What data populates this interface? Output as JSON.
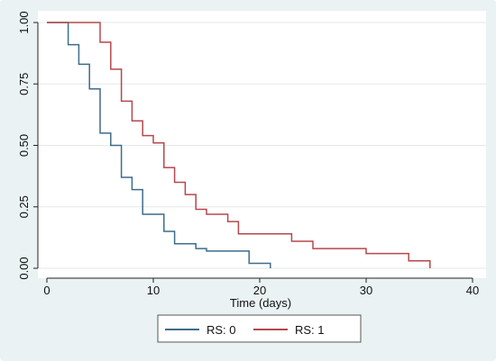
{
  "chart_data": {
    "type": "line",
    "title": "",
    "xlabel": "Time (days)",
    "ylabel": "",
    "xlim": [
      0,
      40
    ],
    "ylim": [
      0,
      1
    ],
    "xticks": [
      0,
      10,
      20,
      30,
      40
    ],
    "yticks": [
      0,
      0.25,
      0.5,
      0.75,
      1
    ],
    "xtick_labels": [
      "0",
      "10",
      "20",
      "30",
      "40"
    ],
    "ytick_labels": [
      "0.00",
      "0.25",
      "0.50",
      "0.75",
      "1.00"
    ],
    "grid": true,
    "step": true,
    "legend_position": "bottom",
    "series": [
      {
        "name": "RS: 0",
        "color": "#3d6d8c",
        "x": [
          0,
          2,
          3,
          4,
          5,
          6,
          7,
          8,
          9,
          11,
          12,
          14,
          15,
          19,
          21
        ],
        "y": [
          1.0,
          0.91,
          0.83,
          0.73,
          0.55,
          0.5,
          0.37,
          0.32,
          0.22,
          0.15,
          0.1,
          0.08,
          0.07,
          0.02,
          0.0
        ]
      },
      {
        "name": "RS: 1",
        "color": "#b5484d",
        "x": [
          0,
          5,
          6,
          7,
          8,
          9,
          10,
          11,
          12,
          13,
          14,
          15,
          17,
          18,
          23,
          25,
          30,
          34,
          36
        ],
        "y": [
          1.0,
          0.92,
          0.81,
          0.68,
          0.6,
          0.54,
          0.51,
          0.41,
          0.35,
          0.3,
          0.24,
          0.22,
          0.19,
          0.14,
          0.11,
          0.08,
          0.06,
          0.03,
          0.0
        ]
      }
    ]
  }
}
